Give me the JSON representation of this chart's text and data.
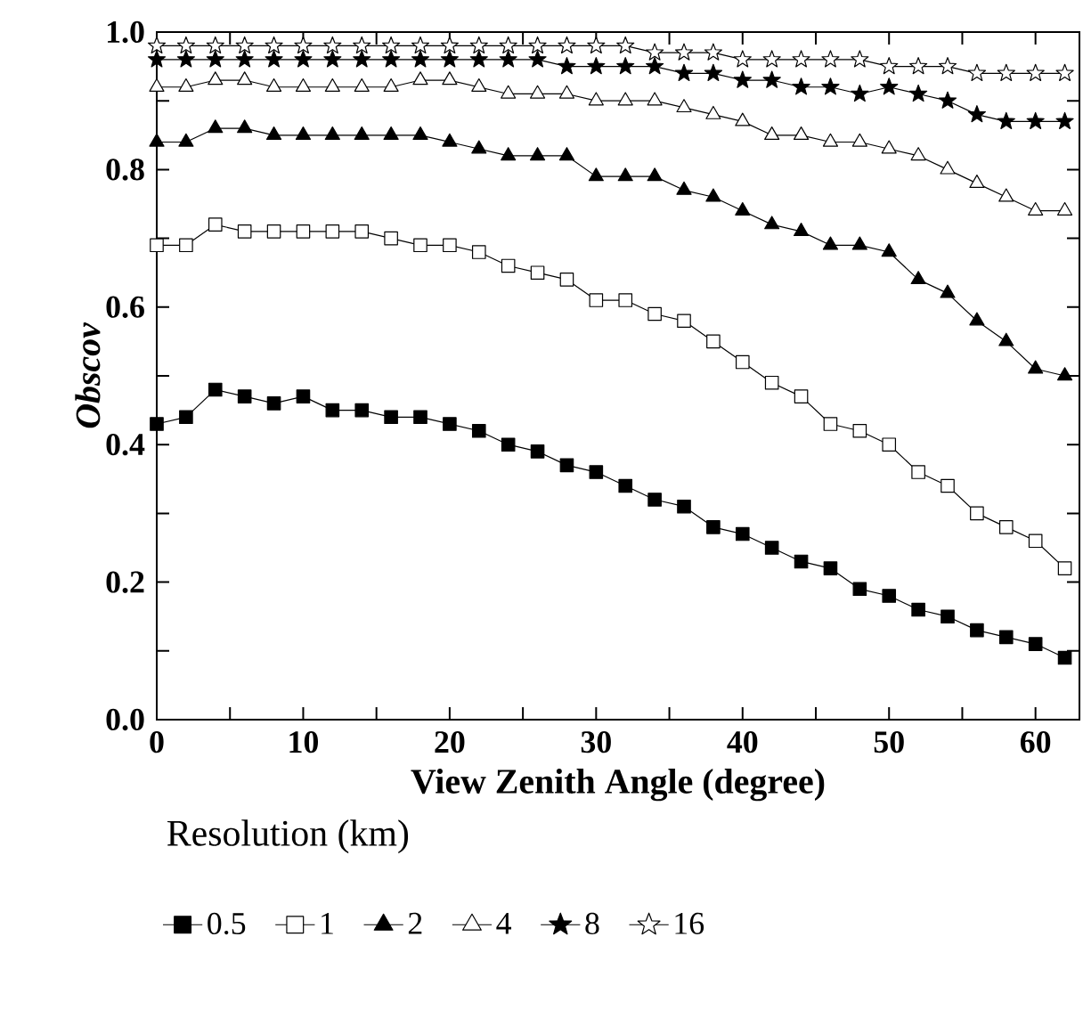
{
  "chart_data": {
    "type": "line",
    "xlabel": "View Zenith Angle (degree)",
    "ylabel": "Obscov",
    "legend_title": "Resolution (km)",
    "legend": "bottom",
    "line_style": "solid",
    "x": [
      0,
      2,
      4,
      6,
      8,
      10,
      12,
      14,
      16,
      18,
      20,
      22,
      24,
      26,
      28,
      30,
      32,
      34,
      36,
      38,
      40,
      42,
      44,
      46,
      48,
      50,
      52,
      54,
      56,
      58,
      60,
      62
    ],
    "xlim": [
      0,
      63
    ],
    "ylim": [
      0,
      1
    ],
    "xticks": [
      0,
      {
        "value": 5,
        "label": null
      },
      10,
      {
        "value": 15,
        "label": null
      },
      20,
      {
        "value": 25,
        "label": null
      },
      30,
      {
        "value": 35,
        "label": null
      },
      40,
      {
        "value": 45,
        "label": null
      },
      50,
      {
        "value": 55,
        "label": null
      },
      60
    ],
    "yticks": [
      {
        "value": 0,
        "label": "0.0"
      },
      {
        "value": 0.1,
        "label": null
      },
      {
        "value": 0.2,
        "label": "0.2"
      },
      {
        "value": 0.3,
        "label": null
      },
      {
        "value": 0.4,
        "label": "0.4"
      },
      {
        "value": 0.5,
        "label": null
      },
      {
        "value": 0.6,
        "label": "0.6"
      },
      {
        "value": 0.7,
        "label": null
      },
      {
        "value": 0.8,
        "label": "0.8"
      },
      {
        "value": 0.9,
        "label": null
      },
      {
        "value": 1.0,
        "label": "1.0"
      }
    ],
    "series": [
      {
        "name": "0.5",
        "color": "#000000",
        "marker": "square",
        "values": [
          0.43,
          0.44,
          0.48,
          0.47,
          0.46,
          0.47,
          0.45,
          0.45,
          0.44,
          0.44,
          0.43,
          0.42,
          0.4,
          0.39,
          0.37,
          0.36,
          0.34,
          0.32,
          0.31,
          0.28,
          0.27,
          0.25,
          0.23,
          0.22,
          0.19,
          0.18,
          0.16,
          0.15,
          0.13,
          0.12,
          0.11,
          0.09
        ]
      },
      {
        "name": "1",
        "color": "#000000",
        "marker": "square open",
        "values": [
          0.69,
          0.69,
          0.72,
          0.71,
          0.71,
          0.71,
          0.71,
          0.71,
          0.7,
          0.69,
          0.69,
          0.68,
          0.66,
          0.65,
          0.64,
          0.61,
          0.61,
          0.59,
          0.58,
          0.55,
          0.52,
          0.49,
          0.47,
          0.43,
          0.42,
          0.4,
          0.36,
          0.34,
          0.3,
          0.28,
          0.26,
          0.22
        ]
      },
      {
        "name": "2",
        "color": "#000000",
        "marker": "triangle",
        "values": [
          0.84,
          0.84,
          0.86,
          0.86,
          0.85,
          0.85,
          0.85,
          0.85,
          0.85,
          0.85,
          0.84,
          0.83,
          0.82,
          0.82,
          0.82,
          0.79,
          0.79,
          0.79,
          0.77,
          0.76,
          0.74,
          0.72,
          0.71,
          0.69,
          0.69,
          0.68,
          0.64,
          0.62,
          0.58,
          0.55,
          0.51,
          0.5
        ]
      },
      {
        "name": "4",
        "color": "#000000",
        "marker": "triangle open",
        "values": [
          0.92,
          0.92,
          0.93,
          0.93,
          0.92,
          0.92,
          0.92,
          0.92,
          0.92,
          0.93,
          0.93,
          0.92,
          0.91,
          0.91,
          0.91,
          0.9,
          0.9,
          0.9,
          0.89,
          0.88,
          0.87,
          0.85,
          0.85,
          0.84,
          0.84,
          0.83,
          0.82,
          0.8,
          0.78,
          0.76,
          0.74,
          0.74
        ]
      },
      {
        "name": "8",
        "color": "#000000",
        "marker": "star",
        "values": [
          0.96,
          0.96,
          0.96,
          0.96,
          0.96,
          0.96,
          0.96,
          0.96,
          0.96,
          0.96,
          0.96,
          0.96,
          0.96,
          0.96,
          0.95,
          0.95,
          0.95,
          0.95,
          0.94,
          0.94,
          0.93,
          0.93,
          0.92,
          0.92,
          0.91,
          0.92,
          0.91,
          0.9,
          0.88,
          0.87,
          0.87,
          0.87
        ]
      },
      {
        "name": "16",
        "color": "#000000",
        "marker": "star open",
        "values": [
          0.98,
          0.98,
          0.98,
          0.98,
          0.98,
          0.98,
          0.98,
          0.98,
          0.98,
          0.98,
          0.98,
          0.98,
          0.98,
          0.98,
          0.98,
          0.98,
          0.98,
          0.97,
          0.97,
          0.97,
          0.96,
          0.96,
          0.96,
          0.96,
          0.96,
          0.95,
          0.95,
          0.95,
          0.94,
          0.94,
          0.94,
          0.94
        ]
      }
    ]
  }
}
